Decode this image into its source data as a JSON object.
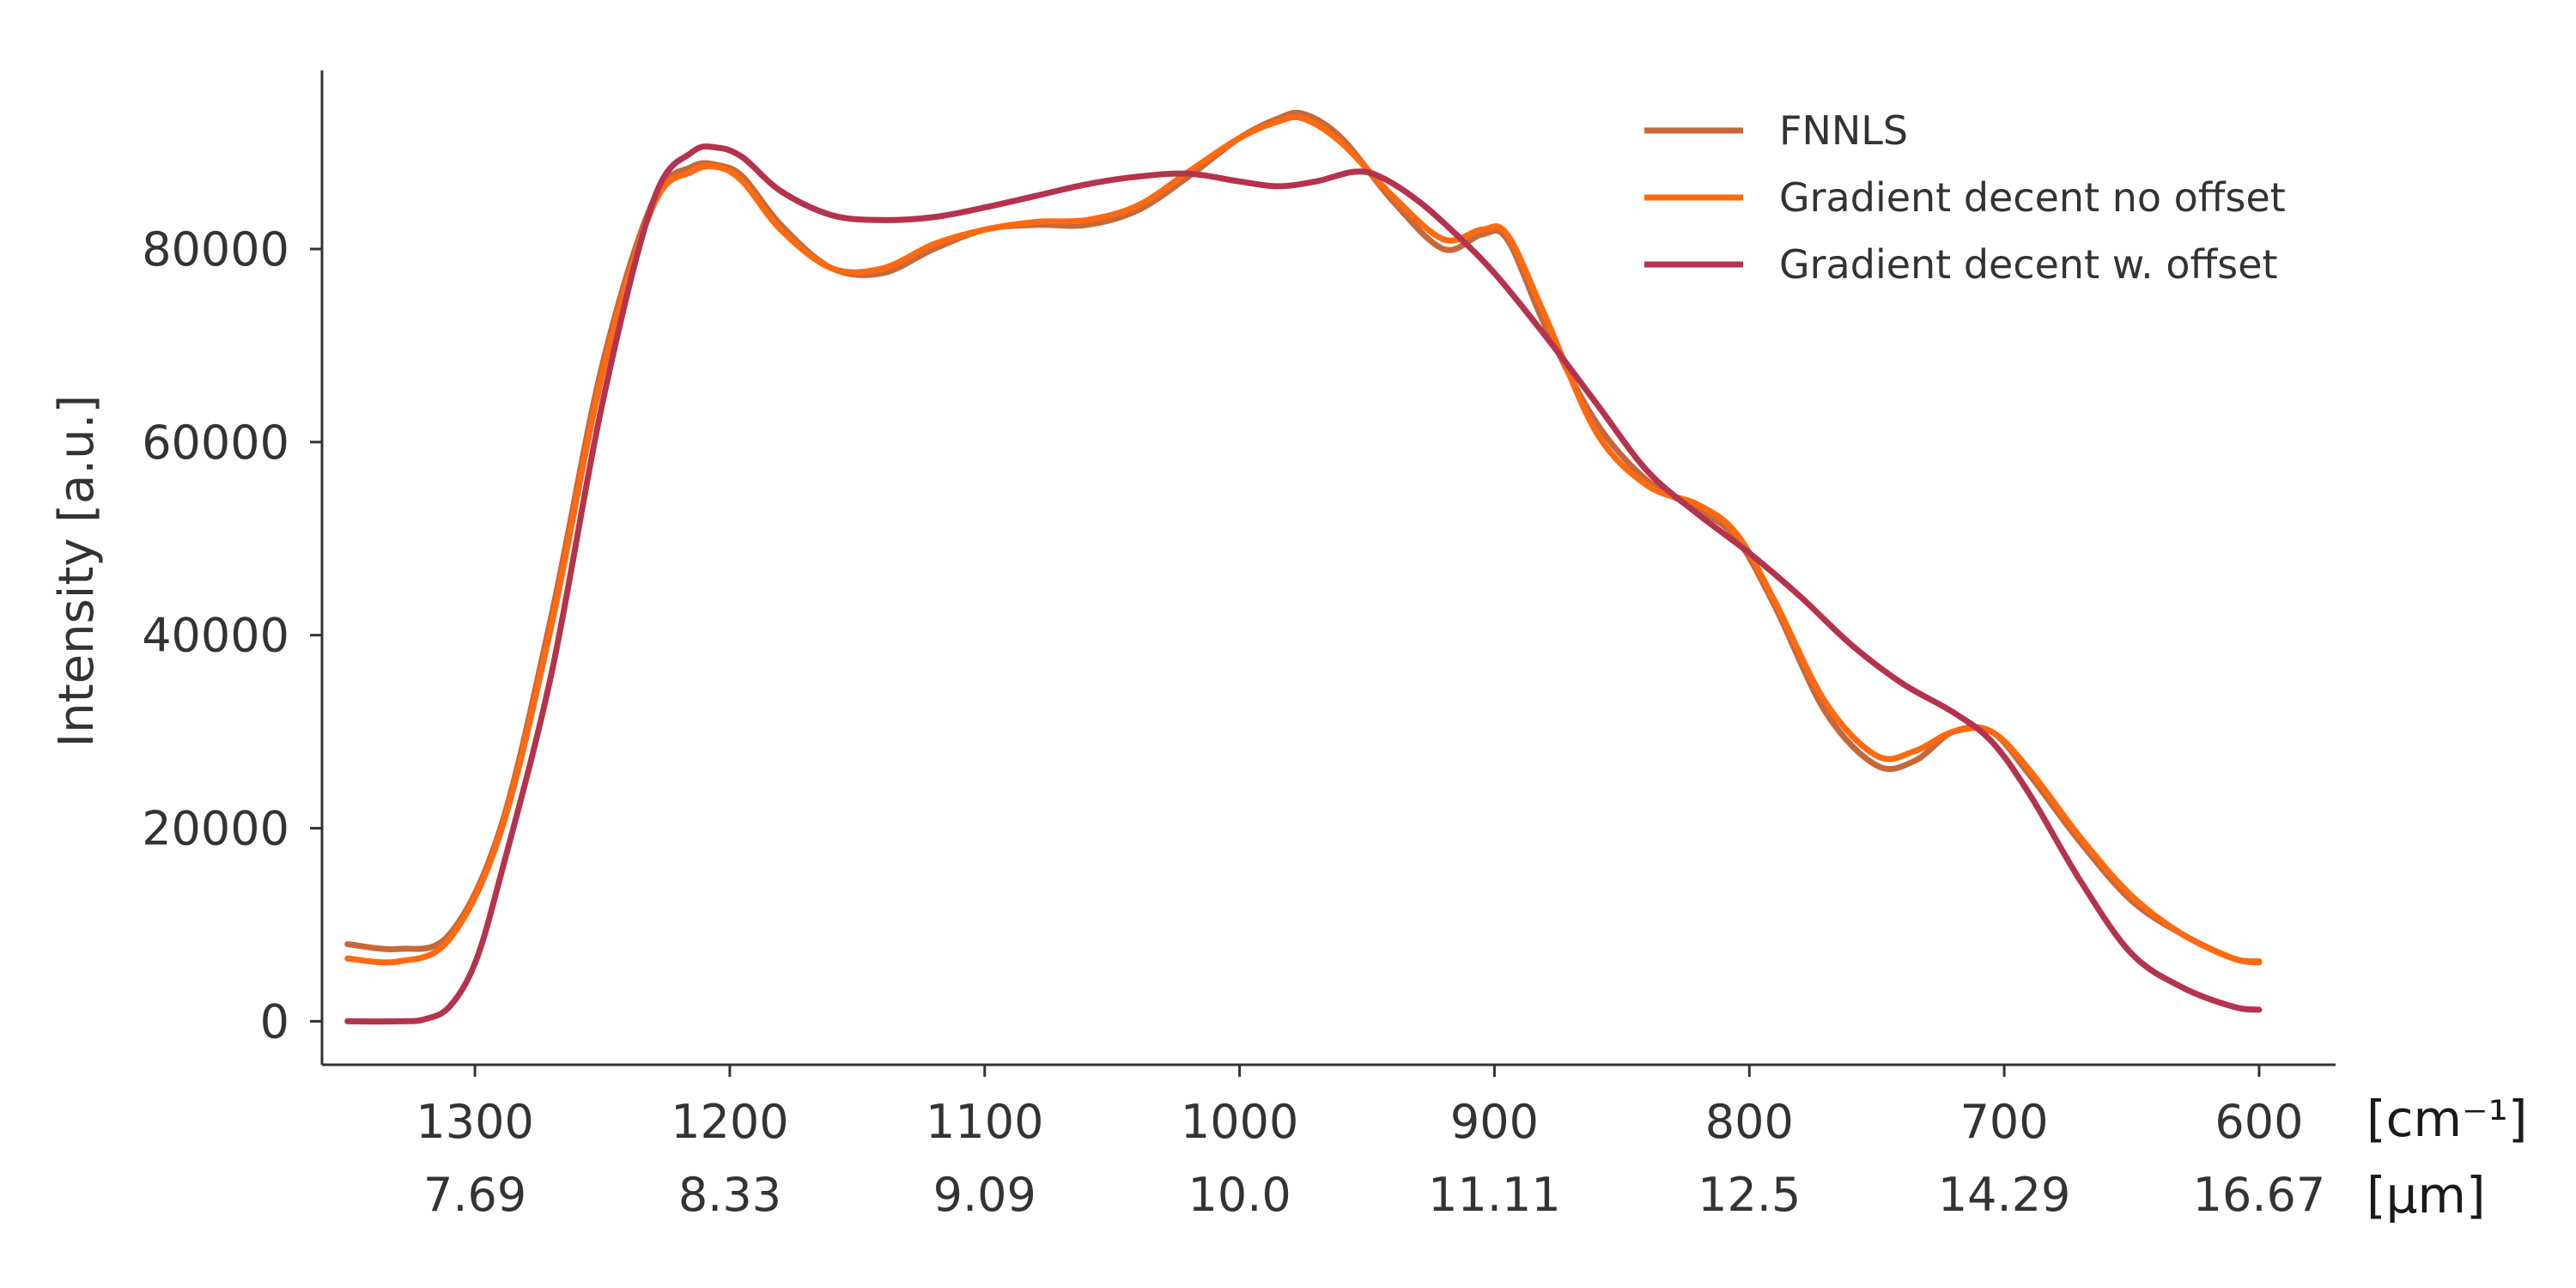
{
  "chart_data": {
    "type": "line",
    "ylabel": "Intensity [a.u.]",
    "xlim": [
      1360,
      570
    ],
    "ylim": [
      -4500,
      98500
    ],
    "x_ticks": [
      1300,
      1200,
      1100,
      1000,
      900,
      800,
      700,
      600
    ],
    "x_tick_labels": [
      "1300",
      "1200",
      "1100",
      "1000",
      "900",
      "800",
      "700",
      "600"
    ],
    "x_secondary_tick_labels": [
      "7.69",
      "8.33",
      "9.09",
      "10.0",
      "11.11",
      "12.5",
      "14.29",
      "16.67"
    ],
    "x_unit_primary": "[cm⁻¹]",
    "x_unit_secondary": "[μm]",
    "y_ticks": [
      0,
      20000,
      40000,
      60000,
      80000
    ],
    "y_tick_labels": [
      "0",
      "20000",
      "40000",
      "60000",
      "80000"
    ],
    "legend_position": "top-right",
    "grid": false,
    "series": [
      {
        "name": "FNNLS",
        "color": "#c8683a",
        "x": [
          1350,
          1330,
          1310,
          1290,
          1270,
          1250,
          1230,
          1215,
          1205,
          1195,
          1180,
          1160,
          1140,
          1120,
          1100,
          1080,
          1060,
          1040,
          1020,
          1000,
          985,
          975,
          960,
          940,
          920,
          905,
          895,
          880,
          860,
          840,
          820,
          805,
          790,
          770,
          750,
          735,
          720,
          705,
          690,
          670,
          650,
          630,
          610,
          600
        ],
        "y": [
          8000,
          7500,
          9000,
          20000,
          42000,
          68000,
          85000,
          88500,
          88700,
          87500,
          82500,
          78000,
          77500,
          80000,
          82000,
          82500,
          82500,
          84000,
          87500,
          91500,
          93500,
          94000,
          91500,
          85000,
          80000,
          81500,
          81000,
          72000,
          62000,
          56000,
          53000,
          50000,
          43000,
          32000,
          26500,
          27000,
          30000,
          30000,
          25500,
          18500,
          12500,
          9000,
          6500,
          6200
        ]
      },
      {
        "name": "Gradient decent no offset",
        "color": "#ff6a10",
        "x": [
          1350,
          1330,
          1310,
          1290,
          1270,
          1250,
          1230,
          1215,
          1205,
          1195,
          1180,
          1160,
          1140,
          1120,
          1100,
          1080,
          1060,
          1040,
          1020,
          1000,
          985,
          975,
          960,
          940,
          920,
          905,
          895,
          880,
          860,
          840,
          820,
          805,
          790,
          770,
          750,
          735,
          720,
          705,
          690,
          670,
          650,
          630,
          610,
          600
        ],
        "y": [
          6500,
          6200,
          8500,
          19500,
          41000,
          67000,
          84500,
          88000,
          88500,
          87000,
          82000,
          78000,
          78000,
          80500,
          82000,
          82800,
          83000,
          84500,
          88000,
          91500,
          93200,
          93500,
          91000,
          85500,
          81000,
          82000,
          81500,
          73000,
          61000,
          55500,
          53500,
          50500,
          43500,
          33000,
          27500,
          28000,
          30000,
          30000,
          26000,
          19000,
          13000,
          9000,
          6500,
          6100
        ]
      },
      {
        "name": "Gradient decent w. offset",
        "color": "#b5334d",
        "x": [
          1350,
          1330,
          1320,
          1310,
          1300,
          1290,
          1270,
          1250,
          1230,
          1215,
          1205,
          1195,
          1180,
          1160,
          1140,
          1120,
          1100,
          1080,
          1060,
          1040,
          1020,
          1000,
          985,
          970,
          955,
          945,
          930,
          915,
          900,
          880,
          860,
          840,
          820,
          800,
          780,
          760,
          740,
          720,
          705,
          690,
          670,
          650,
          630,
          610,
          600
        ],
        "y": [
          0,
          0,
          200,
          1500,
          6000,
          15000,
          36000,
          64000,
          85000,
          90000,
          90500,
          89500,
          86000,
          83500,
          83000,
          83300,
          84300,
          85500,
          86700,
          87500,
          87800,
          87000,
          86500,
          87000,
          88000,
          87500,
          85000,
          81500,
          77500,
          71000,
          64000,
          57000,
          52500,
          48500,
          44000,
          39000,
          35000,
          32000,
          29000,
          23500,
          14500,
          7000,
          3500,
          1500,
          1200
        ]
      }
    ]
  }
}
